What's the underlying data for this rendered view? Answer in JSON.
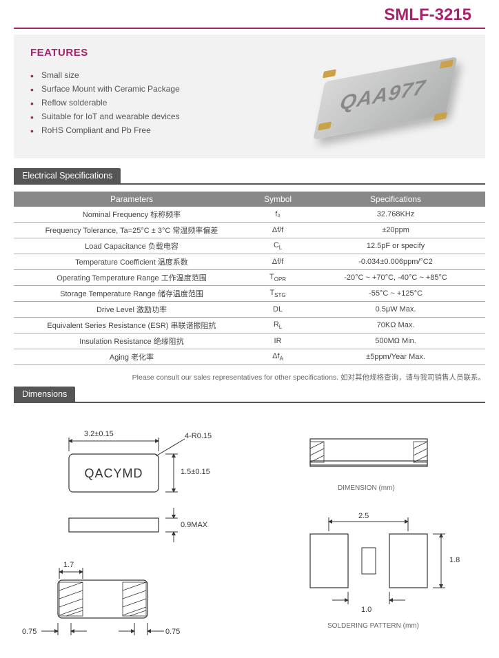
{
  "product_title": "SMLF-3215",
  "features": {
    "heading": "FEATURES",
    "items": [
      "Small size",
      "Surface Mount with Ceramic Package",
      "Reflow solderable",
      "Suitable for IoT and wearable devices",
      "RoHS Compliant and Pb Free"
    ]
  },
  "chip_marking": "QAA977",
  "colors": {
    "accent": "#a8216b",
    "header_bar": "#555555",
    "table_header": "#888888",
    "features_bg": "#f2f2f2",
    "chip_start": "#d8d8d8",
    "chip_end": "#aeb0b0",
    "chip_pad": "#caa24a"
  },
  "spec_section_title": "Electrical Specifications",
  "spec_headers": {
    "param": "Parameters",
    "symbol": "Symbol",
    "spec": "Specifications"
  },
  "specs": [
    {
      "param": "Nominal Frequency  标称频率",
      "symbol": "f₀",
      "spec": "32.768KHz"
    },
    {
      "param": "Frequency Tolerance, Ta=25°C ± 3°C  常温频率偏差",
      "symbol": "Δf/f",
      "spec": "±20ppm"
    },
    {
      "param": "Load Capacitance  负载电容",
      "symbol": "C_L",
      "spec": "12.5pF or specify"
    },
    {
      "param": "Temperature Coefficient  温度系数",
      "symbol": "Δf/f",
      "spec": "-0.034±0.006ppm/°C2"
    },
    {
      "param": "Operating Temperature Range  工作温度范围",
      "symbol": "T_OPR",
      "spec": "-20°C ~ +70°C, -40°C ~ +85°C"
    },
    {
      "param": "Storage Temperature Range  储存温度范围",
      "symbol": "T_STG",
      "spec": "-55°C ~ +125°C"
    },
    {
      "param": "Drive Level  激励功率",
      "symbol": "DL",
      "spec": "0.5μW Max."
    },
    {
      "param": "Equivalent Series Resistance (ESR)  串联谐振阻抗",
      "symbol": "R_L",
      "spec": "70KΩ Max."
    },
    {
      "param": "Insulation Resistance  绝缘阻抗",
      "symbol": "IR",
      "spec": "500MΩ Min."
    },
    {
      "param": "Aging  老化率",
      "symbol": "Δf_A",
      "spec": "±5ppm/Year Max."
    }
  ],
  "consult_note": "Please consult our sales representatives for other specifications.   如对其他规格查询，请与我司销售人员联系。",
  "dimensions_title": "Dimensions",
  "dimensions": {
    "body_length": "3.2±0.15",
    "body_width": "1.5±0.15",
    "corner_radius": "4-R0.15",
    "height_max": "0.9MAX",
    "pad_length": "1.7",
    "pad_offset": "0.75",
    "top_marking": "QACYMD",
    "caption_dim": "DIMENSION (mm)",
    "sp_length": "2.5",
    "sp_width": "1.8",
    "sp_gap": "1.0",
    "caption_sp": "SOLDERING PATTERN (mm)"
  }
}
